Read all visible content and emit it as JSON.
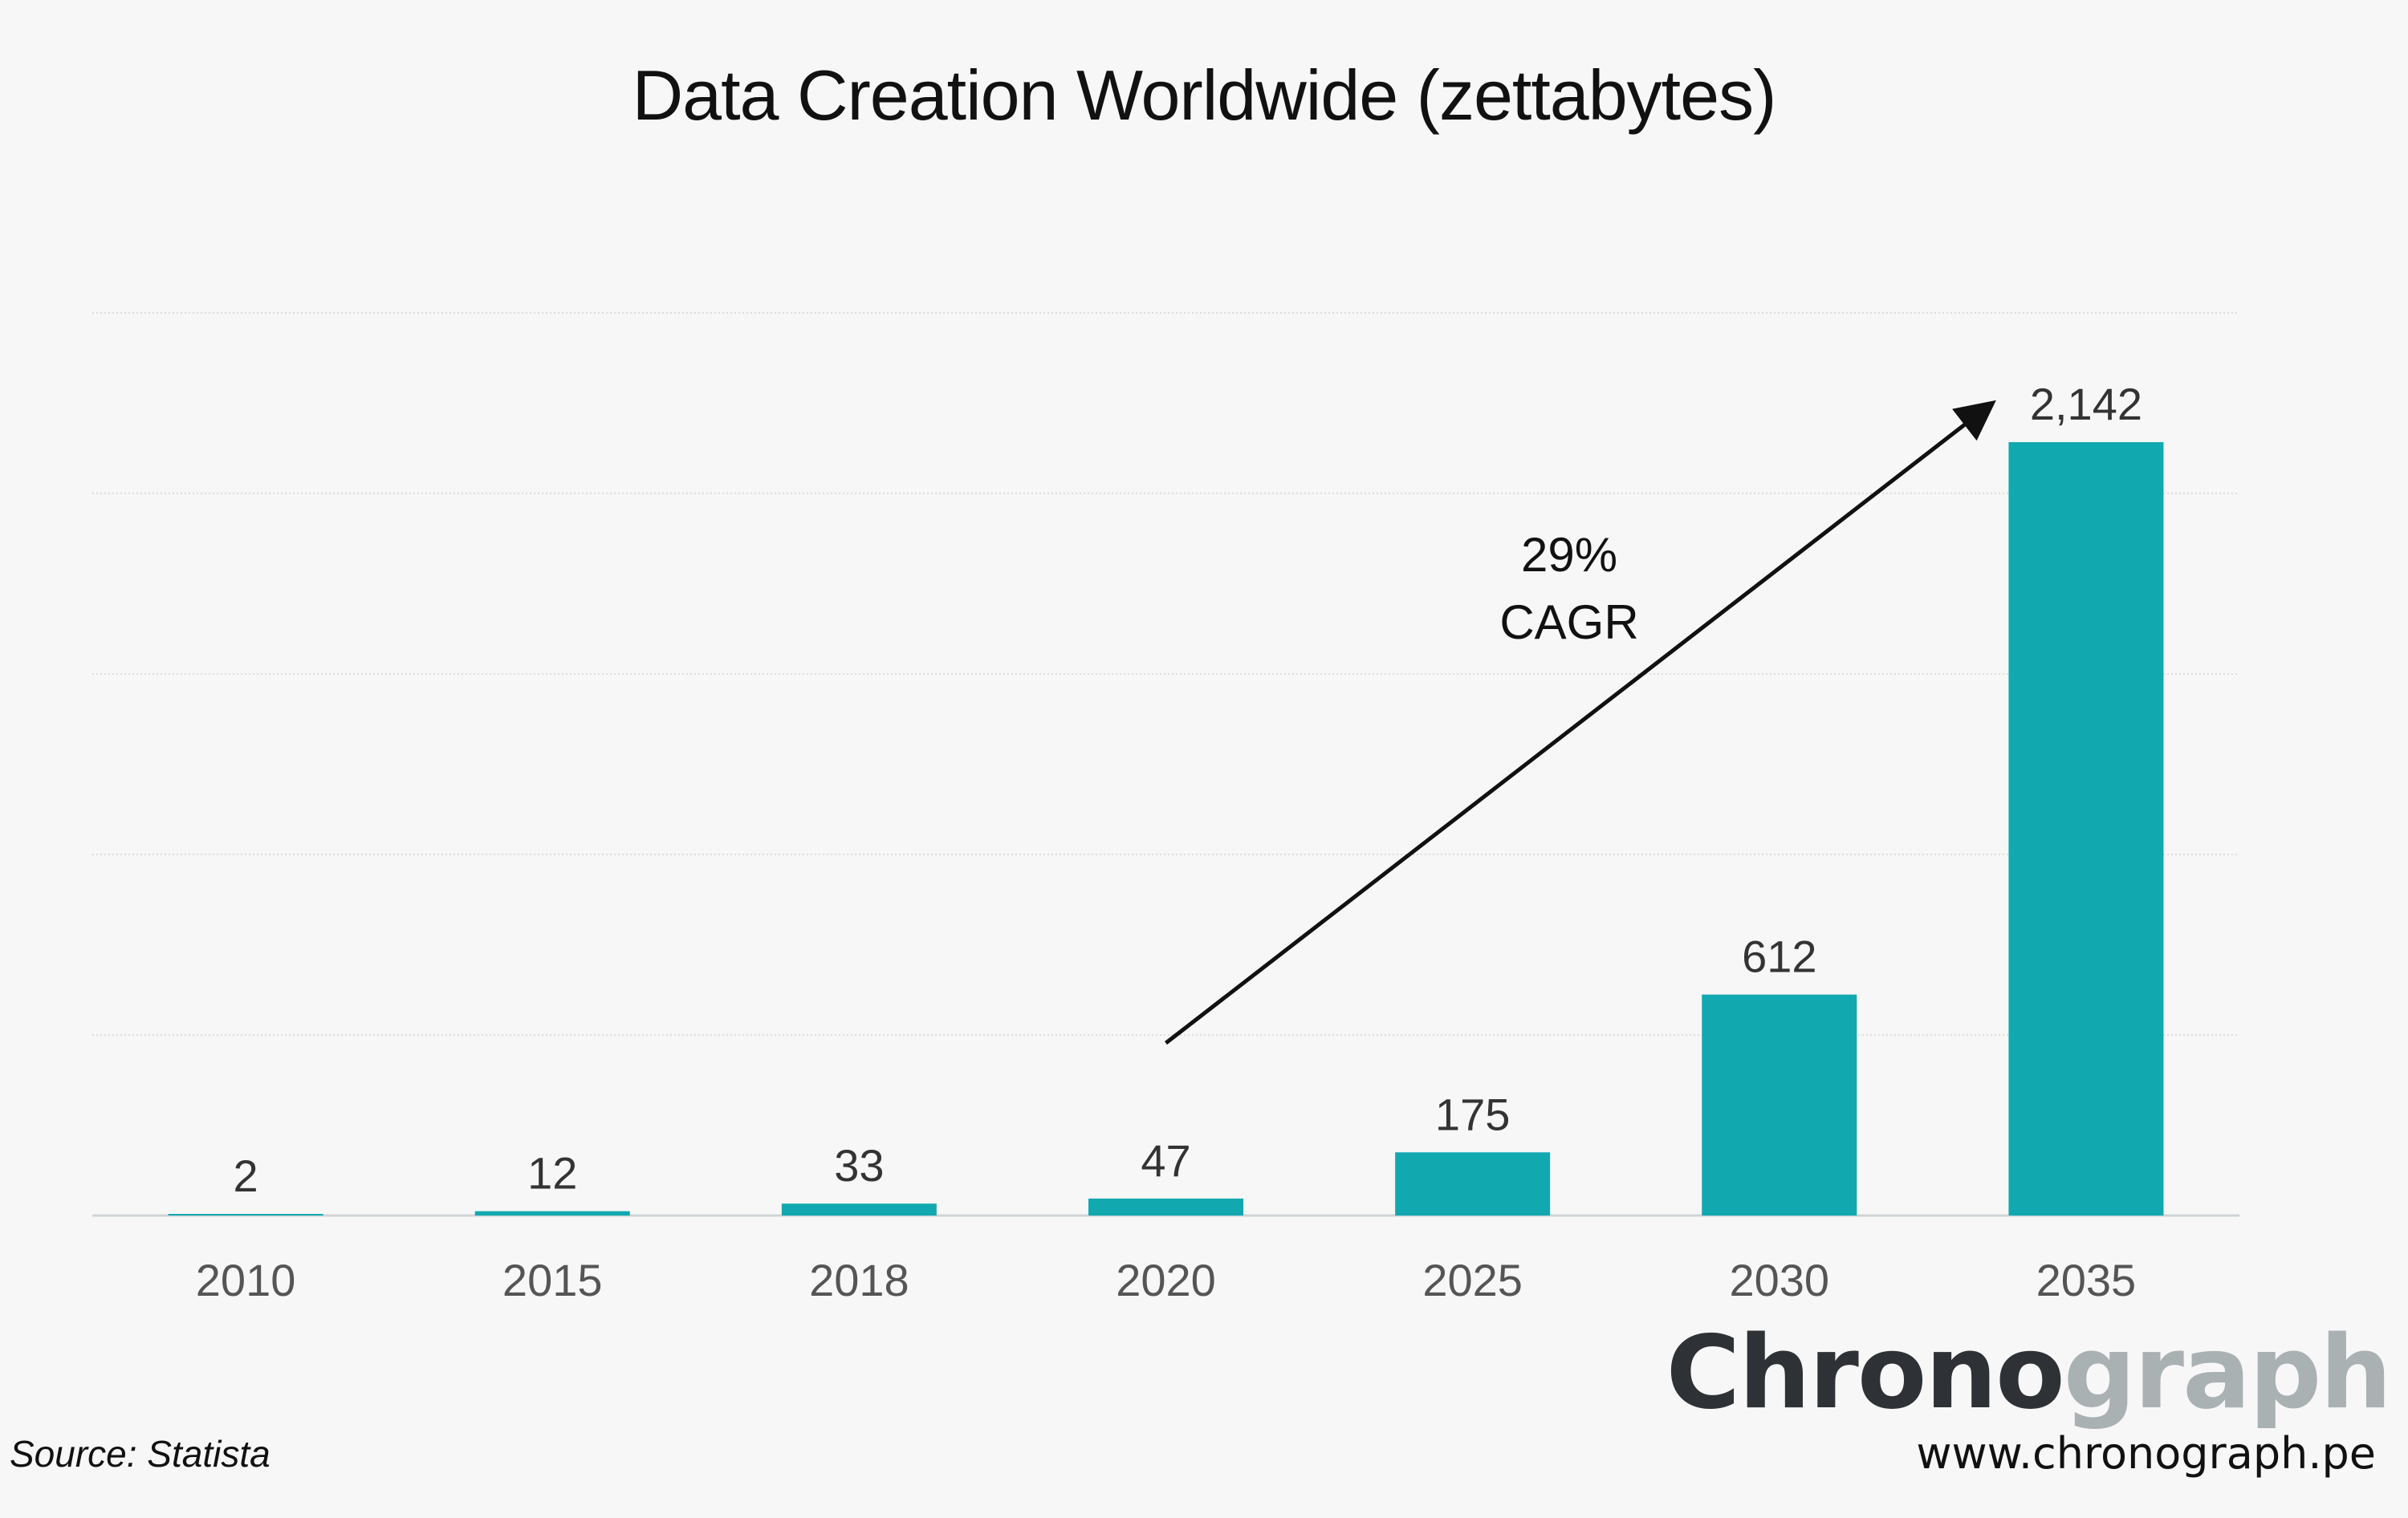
{
  "colors": {
    "background": "#f7f7f7",
    "bar": "#12a8b0",
    "gridline": "#dcdcdc",
    "arrow": "#111111",
    "logo_dark": "#2e3135",
    "logo_light": "#a9b1b3"
  },
  "chart_data": {
    "type": "bar",
    "title": "Data Creation Worldwide (zettabytes)",
    "xlabel": "",
    "ylabel": "",
    "categories": [
      "2010",
      "2015",
      "2018",
      "2020",
      "2025",
      "2030",
      "2035"
    ],
    "values": [
      2,
      12,
      33,
      47,
      175,
      612,
      2142
    ],
    "value_labels": [
      "2",
      "12",
      "33",
      "47",
      "175",
      "612",
      "2,142"
    ],
    "ylim": [
      0,
      2500
    ],
    "grid": true,
    "legend": "none",
    "annotation": {
      "line1": "29%",
      "line2": "CAGR",
      "from_category": "2020",
      "to_category": "2035"
    }
  },
  "footer": {
    "source": "Source: Statista",
    "logo_part_dark": "Chrono",
    "logo_part_light": "graph",
    "url": "www.chronograph.pe"
  }
}
